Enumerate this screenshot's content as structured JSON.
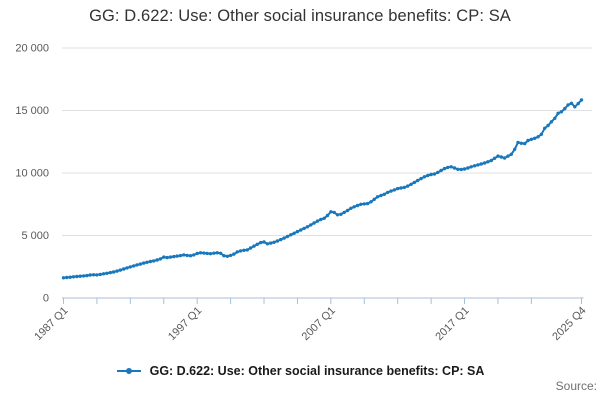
{
  "header": {
    "title": "GG: D.622: Use: Other social insurance benefits: CP: SA"
  },
  "legend": {
    "label": "GG: D.622: Use: Other social insurance benefits: CP: SA"
  },
  "footer": {
    "source_label": "Source:"
  },
  "colors": {
    "line": "#1977bb",
    "grid": "#e0e0e0",
    "axis": "#a9bfd6",
    "tick_text": "#595959",
    "title_text": "#333333",
    "source_text": "#707070",
    "background": "#ffffff"
  },
  "chart_data": {
    "type": "line",
    "title": "GG: D.622: Use: Other social insurance benefits: CP: SA",
    "xlabel": "",
    "ylabel": "",
    "x_start": "1987 Q1",
    "x_end": "2025 Q4",
    "frequency": "quarterly",
    "ylim": [
      0,
      20000
    ],
    "grid": "horizontal",
    "legend_position": "bottom",
    "markers": true,
    "y_ticks": [
      {
        "value": 0,
        "label": "0"
      },
      {
        "value": 5000,
        "label": "5 000"
      },
      {
        "value": 10000,
        "label": "10 000"
      },
      {
        "value": 15000,
        "label": "15 000"
      },
      {
        "value": 20000,
        "label": "20 000"
      }
    ],
    "x_ticks": [
      {
        "index": 0,
        "label": "1987 Q1"
      },
      {
        "index": 40,
        "label": "1997 Q1"
      },
      {
        "index": 80,
        "label": "2007 Q1"
      },
      {
        "index": 120,
        "label": "2017 Q1"
      },
      {
        "index": 155,
        "label": "2025 Q4"
      }
    ],
    "minor_tick_step": 10,
    "series": [
      {
        "name": "GG: D.622: Use: Other social insurance benefits: CP: SA",
        "color": "#1977bb",
        "values": [
          1620,
          1640,
          1665,
          1695,
          1720,
          1745,
          1765,
          1795,
          1840,
          1860,
          1845,
          1885,
          1935,
          1980,
          2030,
          2080,
          2155,
          2235,
          2320,
          2410,
          2490,
          2570,
          2645,
          2715,
          2790,
          2860,
          2920,
          2970,
          3040,
          3130,
          3270,
          3230,
          3270,
          3310,
          3350,
          3395,
          3445,
          3405,
          3385,
          3450,
          3560,
          3620,
          3595,
          3565,
          3545,
          3585,
          3620,
          3580,
          3385,
          3335,
          3405,
          3515,
          3685,
          3765,
          3815,
          3845,
          4000,
          4150,
          4300,
          4430,
          4480,
          4340,
          4390,
          4460,
          4560,
          4670,
          4790,
          4920,
          5060,
          5180,
          5310,
          5440,
          5570,
          5700,
          5850,
          6000,
          6150,
          6280,
          6380,
          6600,
          6900,
          6850,
          6660,
          6700,
          6850,
          7000,
          7180,
          7300,
          7400,
          7500,
          7530,
          7550,
          7700,
          7900,
          8100,
          8200,
          8300,
          8450,
          8550,
          8650,
          8750,
          8800,
          8850,
          8950,
          9100,
          9250,
          9400,
          9550,
          9700,
          9800,
          9880,
          9920,
          10050,
          10200,
          10350,
          10450,
          10500,
          10400,
          10300,
          10280,
          10320,
          10400,
          10500,
          10580,
          10650,
          10720,
          10800,
          10900,
          11000,
          11180,
          11350,
          11280,
          11200,
          11350,
          11500,
          11900,
          12450,
          12380,
          12350,
          12600,
          12700,
          12780,
          12900,
          13100,
          13580,
          13800,
          14100,
          14380,
          14780,
          14900,
          15150,
          15450,
          15580,
          15300,
          15550,
          15840
        ]
      }
    ]
  }
}
